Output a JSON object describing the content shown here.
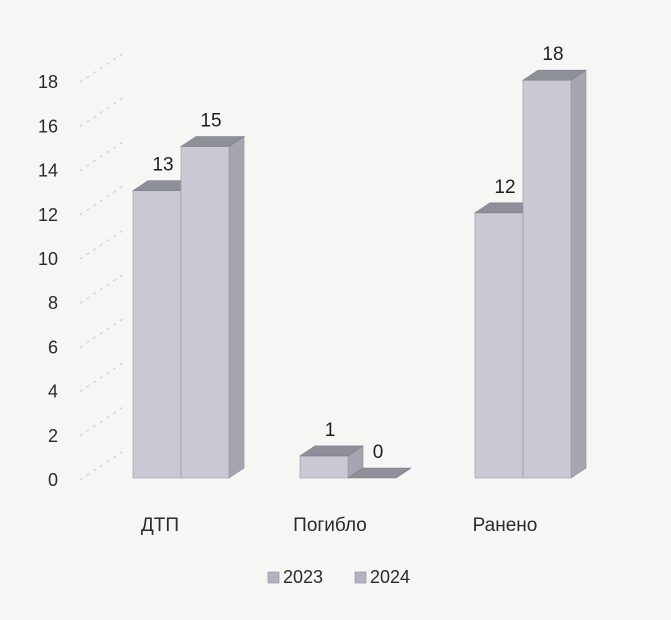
{
  "chart_data": {
    "type": "bar",
    "categories": [
      "ДТП",
      "Погибло",
      "Ранено"
    ],
    "series": [
      {
        "name": "2023",
        "values": [
          13,
          1,
          12
        ]
      },
      {
        "name": "2024",
        "values": [
          15,
          0,
          18
        ]
      }
    ],
    "data_labels": [
      [
        "13",
        "1",
        "12"
      ],
      [
        "15",
        "0",
        "18"
      ]
    ],
    "y_ticks": [
      "0",
      "2",
      "4",
      "6",
      "8",
      "10",
      "12",
      "14",
      "16",
      "18"
    ],
    "ylim": [
      0,
      18
    ],
    "grid": false,
    "legend_position": "bottom",
    "title": "",
    "xlabel": "",
    "ylabel": "",
    "colors": {
      "bar_front": "#c9c9d3",
      "bar_top": "#8f8f9a",
      "bar_side": "#a6a6b1",
      "background": "#f6f6f4",
      "legend_swatch": "#b3b3bd"
    }
  }
}
